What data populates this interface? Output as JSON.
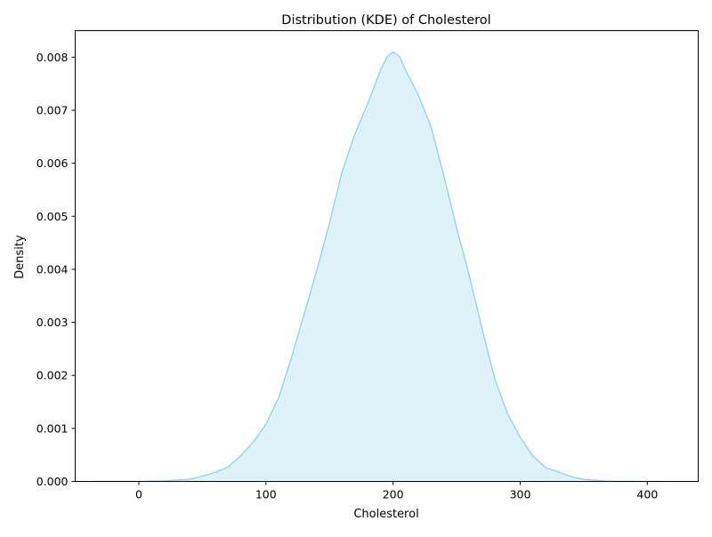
{
  "chart_data": {
    "type": "area",
    "title": "Distribution (KDE) of Cholesterol",
    "xlabel": "Cholesterol",
    "ylabel": "Density",
    "xlim": [
      -50,
      440
    ],
    "ylim": [
      0,
      0.0085
    ],
    "xticks": [
      0,
      100,
      200,
      300,
      400
    ],
    "yticks": [
      0.0,
      0.001,
      0.002,
      0.003,
      0.004,
      0.005,
      0.006,
      0.007,
      0.008
    ],
    "ytick_labels": [
      "0.000",
      "0.001",
      "0.002",
      "0.003",
      "0.004",
      "0.005",
      "0.006",
      "0.007",
      "0.008"
    ],
    "grid": false,
    "series": [
      {
        "line_color": "#87ceeb",
        "fill_color": "#87ceeb",
        "fill_opacity": 0.27,
        "x": [
          -35,
          0,
          20,
          40,
          50,
          60,
          70,
          80,
          90,
          100,
          110,
          120,
          130,
          140,
          150,
          160,
          170,
          180,
          190,
          195,
          200,
          205,
          210,
          220,
          230,
          240,
          250,
          260,
          270,
          280,
          290,
          300,
          310,
          320,
          330,
          340,
          350,
          370,
          400,
          415
        ],
        "y": [
          0,
          0,
          1e-05,
          4e-05,
          0.0001,
          0.00017,
          0.00027,
          0.00048,
          0.00074,
          0.00108,
          0.00158,
          0.00233,
          0.00315,
          0.00398,
          0.00487,
          0.00585,
          0.00655,
          0.00712,
          0.00775,
          0.008,
          0.0081,
          0.00802,
          0.00775,
          0.00728,
          0.00668,
          0.00576,
          0.00478,
          0.00388,
          0.00288,
          0.00193,
          0.00128,
          0.00083,
          0.00048,
          0.00026,
          0.00018,
          9e-05,
          4e-05,
          5e-06,
          0,
          0
        ]
      }
    ]
  }
}
